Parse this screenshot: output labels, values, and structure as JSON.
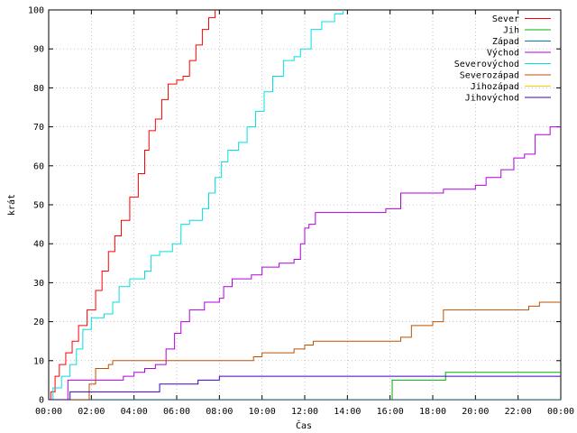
{
  "chart_data": {
    "type": "line",
    "title": "",
    "xlabel": "Čas",
    "ylabel": "krát",
    "xlim": [
      0,
      24
    ],
    "ylim": [
      0,
      100
    ],
    "grid": true,
    "legend_position": "top-right",
    "x_ticks": [
      "00:00",
      "02:00",
      "04:00",
      "06:00",
      "08:00",
      "10:00",
      "12:00",
      "14:00",
      "16:00",
      "18:00",
      "20:00",
      "22:00",
      "00:00"
    ],
    "y_ticks": [
      "0",
      "10",
      "20",
      "30",
      "40",
      "50",
      "60",
      "70",
      "80",
      "90",
      "100"
    ],
    "x_tick_values": [
      0,
      2,
      4,
      6,
      8,
      10,
      12,
      14,
      16,
      18,
      20,
      22,
      24
    ],
    "y_tick_values": [
      0,
      10,
      20,
      30,
      40,
      50,
      60,
      70,
      80,
      90,
      100
    ],
    "series": [
      {
        "name": "Sever",
        "color": "#ff0000",
        "points": [
          [
            0,
            0
          ],
          [
            0.1,
            2
          ],
          [
            0.3,
            6
          ],
          [
            0.5,
            9
          ],
          [
            0.8,
            12
          ],
          [
            1.1,
            15
          ],
          [
            1.4,
            19
          ],
          [
            1.8,
            23
          ],
          [
            2.2,
            28
          ],
          [
            2.5,
            33
          ],
          [
            2.8,
            38
          ],
          [
            3.1,
            42
          ],
          [
            3.4,
            46
          ],
          [
            3.8,
            52
          ],
          [
            4.2,
            58
          ],
          [
            4.5,
            64
          ],
          [
            4.7,
            69
          ],
          [
            5.0,
            72
          ],
          [
            5.3,
            77
          ],
          [
            5.6,
            81
          ],
          [
            6.0,
            82
          ],
          [
            6.3,
            83
          ],
          [
            6.6,
            87
          ],
          [
            6.9,
            91
          ],
          [
            7.2,
            95
          ],
          [
            7.5,
            98
          ],
          [
            7.8,
            100
          ]
        ]
      },
      {
        "name": "Jih",
        "color": "#00b000",
        "points": [
          [
            16.0,
            0
          ],
          [
            16.1,
            5
          ],
          [
            18.5,
            5
          ],
          [
            18.6,
            7
          ],
          [
            24,
            7
          ]
        ]
      },
      {
        "name": "Západ",
        "color": "#0080a0",
        "points": [
          [
            0,
            0
          ],
          [
            24,
            0
          ]
        ]
      },
      {
        "name": "Východ",
        "color": "#b000e0",
        "points": [
          [
            0,
            0
          ],
          [
            0.8,
            0
          ],
          [
            0.9,
            5
          ],
          [
            2.5,
            5
          ],
          [
            3.0,
            5
          ],
          [
            3.5,
            6
          ],
          [
            4.0,
            7
          ],
          [
            4.5,
            8
          ],
          [
            5.0,
            9
          ],
          [
            5.5,
            13
          ],
          [
            5.9,
            17
          ],
          [
            6.2,
            20
          ],
          [
            6.6,
            23
          ],
          [
            7.3,
            25
          ],
          [
            8.0,
            26
          ],
          [
            8.2,
            29
          ],
          [
            8.6,
            31
          ],
          [
            9.5,
            32
          ],
          [
            10.0,
            34
          ],
          [
            10.8,
            35
          ],
          [
            11.5,
            36
          ],
          [
            11.8,
            40
          ],
          [
            12.0,
            44
          ],
          [
            12.2,
            45
          ],
          [
            12.5,
            48
          ],
          [
            14.0,
            48
          ],
          [
            15.0,
            48
          ],
          [
            15.8,
            49
          ],
          [
            16.5,
            53
          ],
          [
            18.5,
            54
          ],
          [
            20.0,
            55
          ],
          [
            20.5,
            57
          ],
          [
            21.2,
            59
          ],
          [
            21.8,
            62
          ],
          [
            22.3,
            63
          ],
          [
            22.8,
            68
          ],
          [
            23.5,
            70
          ],
          [
            24,
            70
          ]
        ]
      },
      {
        "name": "Severovýchod",
        "color": "#00e0e0",
        "points": [
          [
            0,
            0
          ],
          [
            0.2,
            3
          ],
          [
            0.6,
            6
          ],
          [
            1.0,
            9
          ],
          [
            1.3,
            13
          ],
          [
            1.6,
            18
          ],
          [
            2.0,
            21
          ],
          [
            2.6,
            22
          ],
          [
            3.0,
            25
          ],
          [
            3.3,
            29
          ],
          [
            3.8,
            31
          ],
          [
            4.5,
            33
          ],
          [
            4.8,
            37
          ],
          [
            5.2,
            38
          ],
          [
            5.8,
            40
          ],
          [
            6.2,
            45
          ],
          [
            6.6,
            46
          ],
          [
            7.2,
            49
          ],
          [
            7.5,
            53
          ],
          [
            7.8,
            57
          ],
          [
            8.1,
            61
          ],
          [
            8.4,
            64
          ],
          [
            8.9,
            66
          ],
          [
            9.3,
            70
          ],
          [
            9.7,
            74
          ],
          [
            10.1,
            79
          ],
          [
            10.5,
            83
          ],
          [
            11.0,
            87
          ],
          [
            11.5,
            88
          ],
          [
            11.8,
            90
          ],
          [
            12.3,
            95
          ],
          [
            12.8,
            97
          ],
          [
            13.4,
            99
          ],
          [
            13.8,
            100
          ]
        ]
      },
      {
        "name": "Severozápad",
        "color": "#c05000",
        "points": [
          [
            0,
            0
          ],
          [
            1.8,
            0
          ],
          [
            1.9,
            4
          ],
          [
            2.2,
            8
          ],
          [
            2.8,
            9
          ],
          [
            3.0,
            10
          ],
          [
            5.0,
            10
          ],
          [
            7.0,
            10
          ],
          [
            9.0,
            10
          ],
          [
            9.5,
            10
          ],
          [
            9.6,
            11
          ],
          [
            10.0,
            12
          ],
          [
            11.0,
            12
          ],
          [
            11.5,
            13
          ],
          [
            12.0,
            14
          ],
          [
            12.4,
            15
          ],
          [
            15.5,
            15
          ],
          [
            16.5,
            16
          ],
          [
            17.0,
            19
          ],
          [
            18.0,
            20
          ],
          [
            18.5,
            23
          ],
          [
            21.0,
            23
          ],
          [
            22.5,
            24
          ],
          [
            23.0,
            25
          ],
          [
            24,
            25
          ]
        ]
      },
      {
        "name": "Jihozápad",
        "color": "#ffd000",
        "points": []
      },
      {
        "name": "Jihovýchod",
        "color": "#4000c0",
        "points": [
          [
            0,
            0
          ],
          [
            0.9,
            0
          ],
          [
            1.0,
            2
          ],
          [
            4.5,
            2
          ],
          [
            5.0,
            2
          ],
          [
            5.2,
            4
          ],
          [
            6.8,
            4
          ],
          [
            7.0,
            5
          ],
          [
            8.0,
            6
          ],
          [
            10.0,
            6
          ],
          [
            16.0,
            6
          ],
          [
            24,
            6
          ]
        ]
      }
    ]
  }
}
